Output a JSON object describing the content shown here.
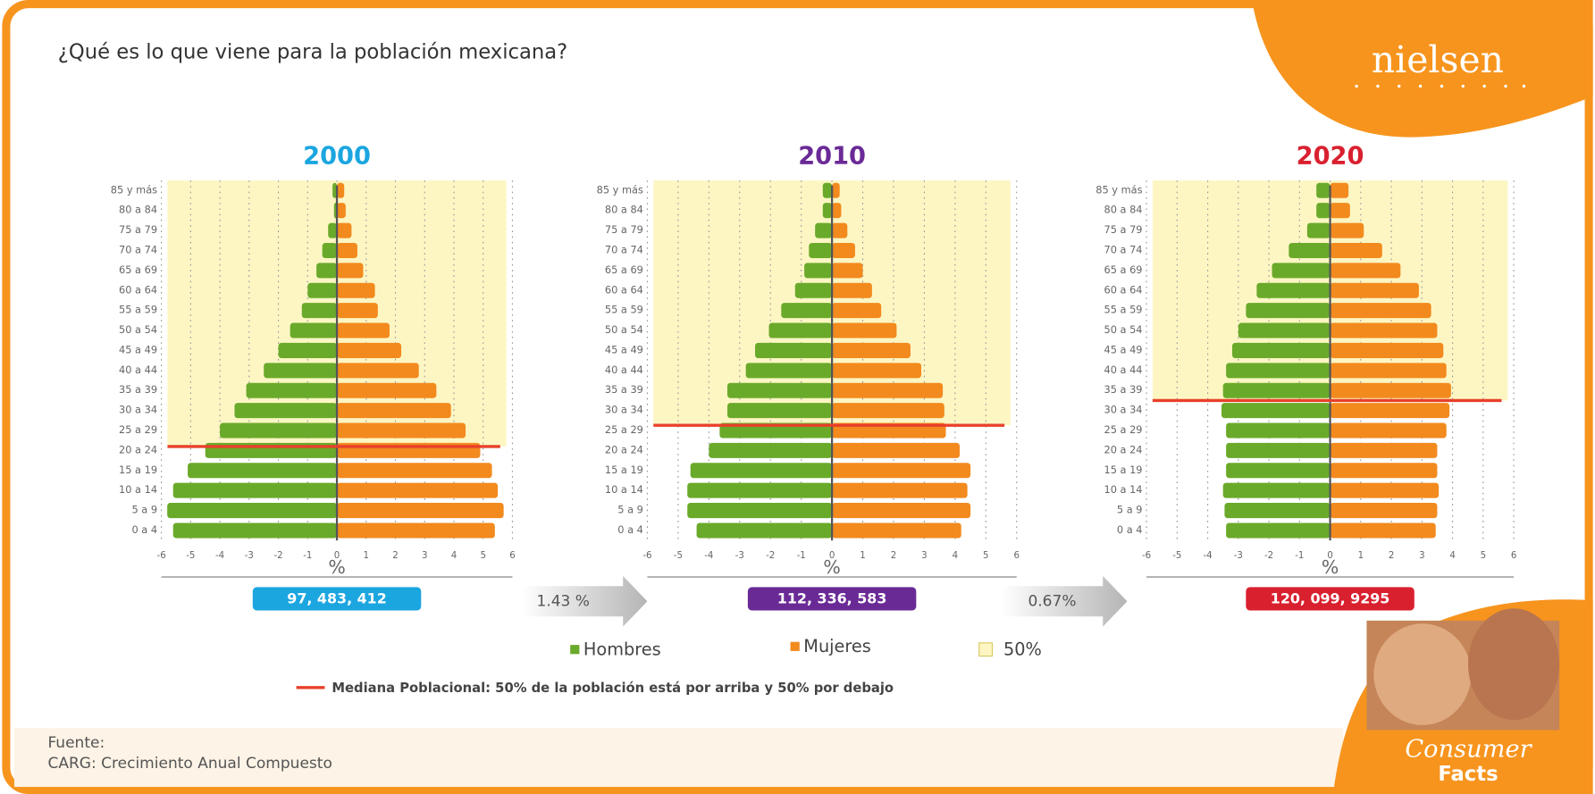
{
  "title": "¿Qué es lo que viene para la población mexicana?",
  "logo": "nielsen",
  "growth_rates": [
    "1.43 %",
    "0.67%"
  ],
  "shade": {
    "name": "50%",
    "color": "#fdf6c3"
  },
  "median_note": {
    "text": "Mediana Poblacional: 50% de la población está por arriba y 50% por debajo",
    "color": "#e8402a"
  },
  "footer": [
    "Fuente:",
    "CARG: Crecimiento Anual Compuesto"
  ],
  "badge": [
    "Consumer",
    "Facts"
  ],
  "chart_data": [
    {
      "type": "pyramid",
      "title": "2000",
      "color": "#1ba6e0",
      "total": "97, 483, 412",
      "categories": [
        "85 y más",
        "80 a 84",
        "75 a 79",
        "70 a 74",
        "65 a 69",
        "60 a 64",
        "55 a 59",
        "50 a 54",
        "45 a 49",
        "40 a 44",
        "35 a 39",
        "30 a 34",
        "25 a 29",
        "20 a 24",
        "15 a 19",
        "10 a 14",
        "5 a 9",
        "0 a 4"
      ],
      "series": [
        {
          "name": "Hombres",
          "color": "#6aaa2a",
          "values": [
            -0.15,
            -0.1,
            -0.3,
            -0.5,
            -0.7,
            -1.0,
            -1.2,
            -1.6,
            -2.0,
            -2.5,
            -3.1,
            -3.5,
            -4.0,
            -4.5,
            -5.1,
            -5.6,
            -5.8,
            -5.6
          ]
        },
        {
          "name": "Mujeres",
          "color": "#f28a1e",
          "values": [
            0.25,
            0.3,
            0.5,
            0.7,
            0.9,
            1.3,
            1.4,
            1.8,
            2.2,
            2.8,
            3.4,
            3.9,
            4.4,
            4.9,
            5.3,
            5.5,
            5.7,
            5.4
          ]
        }
      ],
      "xlim": [
        -6,
        6
      ],
      "xticks": [
        -6,
        -5,
        -4,
        -3,
        -2,
        -1,
        0,
        1,
        2,
        3,
        4,
        5,
        6
      ],
      "xlabel": "%",
      "grid": true,
      "median": 23.5
    },
    {
      "type": "pyramid",
      "title": "2010",
      "color": "#6a2a96",
      "total": "112, 336, 583",
      "categories": [
        "85 y más",
        "80 a 84",
        "75 a 79",
        "70 a 74",
        "65 a 69",
        "60 a 64",
        "55 a 59",
        "50 a 54",
        "45 a 49",
        "40 a 44",
        "35 a 39",
        "30 a 34",
        "25 a 29",
        "20 a 24",
        "15 a 19",
        "10 a 14",
        "5 a 9",
        "0 a 4"
      ],
      "series": [
        {
          "name": "Hombres",
          "color": "#6aaa2a",
          "values": [
            -0.3,
            -0.3,
            -0.55,
            -0.75,
            -0.9,
            -1.2,
            -1.65,
            -2.05,
            -2.5,
            -2.8,
            -3.4,
            -3.4,
            -3.65,
            -4.0,
            -4.6,
            -4.7,
            -4.7,
            -4.4
          ]
        },
        {
          "name": "Mujeres",
          "color": "#f28a1e",
          "values": [
            0.25,
            0.3,
            0.5,
            0.75,
            1.0,
            1.3,
            1.6,
            2.1,
            2.55,
            2.9,
            3.6,
            3.65,
            3.7,
            4.15,
            4.5,
            4.4,
            4.5,
            4.2
          ]
        }
      ],
      "xlim": [
        -6,
        6
      ],
      "xticks": [
        -6,
        -5,
        -4,
        -3,
        -2,
        -1,
        0,
        1,
        2,
        3,
        4,
        5,
        6
      ],
      "xlabel": "%",
      "grid": true,
      "median": 28.8
    },
    {
      "type": "pyramid",
      "title": "2020",
      "color": "#d9202f",
      "total": "120, 099, 9295",
      "categories": [
        "85 y más",
        "80 a 84",
        "75 a 79",
        "70 a 74",
        "65 a 69",
        "60 a 64",
        "55 a 59",
        "50 a 54",
        "45 a 49",
        "40 a 44",
        "35 a 39",
        "30 a 34",
        "25 a 29",
        "20 a 24",
        "15 a 19",
        "10 a 14",
        "5 a 9",
        "0 a 4"
      ],
      "series": [
        {
          "name": "Hombres",
          "color": "#6aaa2a",
          "values": [
            -0.45,
            -0.45,
            -0.75,
            -1.35,
            -1.9,
            -2.4,
            -2.75,
            -3.0,
            -3.2,
            -3.4,
            -3.5,
            -3.55,
            -3.4,
            -3.4,
            -3.4,
            -3.5,
            -3.45,
            -3.4
          ]
        },
        {
          "name": "Mujeres",
          "color": "#f28a1e",
          "values": [
            0.6,
            0.65,
            1.1,
            1.7,
            2.3,
            2.9,
            3.3,
            3.5,
            3.7,
            3.8,
            3.95,
            3.9,
            3.8,
            3.5,
            3.5,
            3.55,
            3.5,
            3.45
          ]
        }
      ],
      "xlim": [
        -6,
        6
      ],
      "xticks": [
        -6,
        -5,
        -4,
        -3,
        -2,
        -1,
        0,
        1,
        2,
        3,
        4,
        5,
        6
      ],
      "xlabel": "%",
      "grid": true,
      "median": 35
    }
  ]
}
